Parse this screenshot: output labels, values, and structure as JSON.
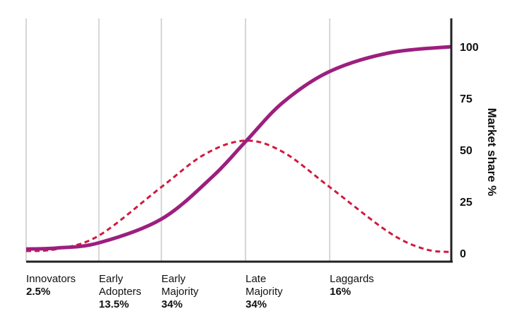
{
  "chart_data": {
    "type": "line",
    "title": "",
    "xlabel": "",
    "ylabel": "Market share %",
    "ylim": [
      0,
      100
    ],
    "y_ticks": [
      "0",
      "25",
      "50",
      "75",
      "100"
    ],
    "y_axis_position": "right",
    "grid": "vertical lines at category boundaries",
    "legend": "none",
    "categories": [
      {
        "name_lines": [
          "Innovators"
        ],
        "share": "2.5%",
        "x": 0
      },
      {
        "name_lines": [
          "Early",
          "Adopters"
        ],
        "share": "13.5%",
        "x": 17.1
      },
      {
        "name_lines": [
          "Early",
          "Majority"
        ],
        "share": "34%",
        "x": 31.8
      },
      {
        "name_lines": [
          "Late",
          "Majority"
        ],
        "share": "34%",
        "x": 51.6
      },
      {
        "name_lines": [
          "Laggards"
        ],
        "share": "16%",
        "x": 71.4
      }
    ],
    "series": [
      {
        "style": "solid",
        "color": "#9c1f7f",
        "points": [
          [
            0,
            2
          ],
          [
            7.2,
            2.5
          ],
          [
            17.1,
            5
          ],
          [
            31.8,
            16.5
          ],
          [
            43.8,
            37
          ],
          [
            51.6,
            54
          ],
          [
            60.4,
            73
          ],
          [
            71.4,
            88
          ],
          [
            85.4,
            97
          ],
          [
            100,
            100
          ]
        ]
      },
      {
        "style": "dashed",
        "color": "#d0193f",
        "points": [
          [
            0,
            1
          ],
          [
            7.2,
            2
          ],
          [
            17.1,
            8.5
          ],
          [
            31.8,
            32
          ],
          [
            42.1,
            48
          ],
          [
            51.6,
            54.5
          ],
          [
            60.4,
            49
          ],
          [
            71.4,
            32
          ],
          [
            85.4,
            10
          ],
          [
            93.7,
            2
          ],
          [
            100,
            0.5
          ]
        ]
      }
    ]
  }
}
